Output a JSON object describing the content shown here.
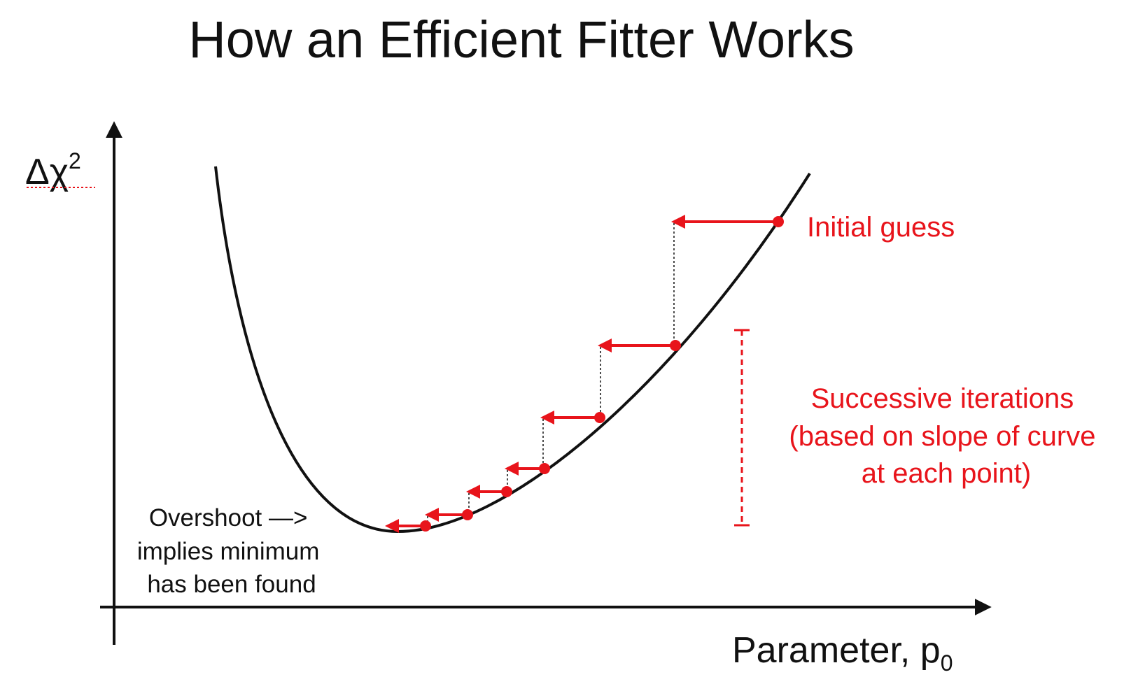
{
  "title": "How an Efficient Fitter Works",
  "y_axis": {
    "label": "Δχ",
    "label_sup": "2"
  },
  "x_axis": {
    "label": "Parameter, p",
    "label_sub": "0"
  },
  "annotations": {
    "initial_guess": "Initial guess",
    "successive_lines": [
      "Successive iterations",
      "(based on slope of curve",
      "at each point)"
    ],
    "overshoot_lines": [
      "Overshoot —>",
      "implies minimum",
      "has been  found"
    ]
  },
  "iteration_points": [
    {
      "p": 1112,
      "dchi2": 317
    },
    {
      "p": 965,
      "dchi2": 494
    },
    {
      "p": 857,
      "dchi2": 597
    },
    {
      "p": 778,
      "dchi2": 670
    },
    {
      "p": 724,
      "dchi2": 703
    },
    {
      "p": 668,
      "dchi2": 736
    },
    {
      "p": 608,
      "dchi2": 752
    }
  ],
  "colors": {
    "curve": "#111111",
    "iterations": "#e8141b",
    "axes": "#111111"
  }
}
